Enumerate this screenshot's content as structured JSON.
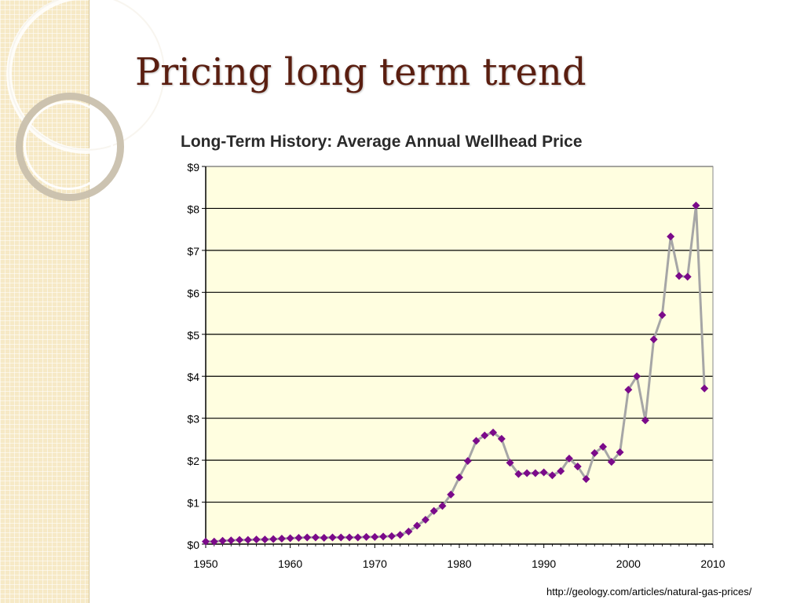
{
  "slide": {
    "title": "Pricing long term trend",
    "source": "http://geology.com/articles/natural-gas-prices/"
  },
  "colors": {
    "title": "#5a1e10",
    "plot_background": "#fffee0",
    "line": "#a6a6a6",
    "marker": "#7b0a8a",
    "side_panel": "#f6e9c6"
  },
  "chart_data": {
    "type": "line",
    "title": "Long-Term History:  Average Annual Wellhead Price",
    "xlabel": "",
    "ylabel": "",
    "xlim": [
      1950,
      2010
    ],
    "ylim": [
      0,
      9
    ],
    "grid": true,
    "x_ticks": [
      1950,
      1960,
      1970,
      1980,
      1990,
      2000,
      2010
    ],
    "x_tick_labels": [
      "1950",
      "1960",
      "1970",
      "1980",
      "1990",
      "2000",
      "2010"
    ],
    "y_ticks": [
      0,
      1,
      2,
      3,
      4,
      5,
      6,
      7,
      8,
      9
    ],
    "y_tick_labels": [
      "$0",
      "$1",
      "$2",
      "$3",
      "$4",
      "$5",
      "$6",
      "$7",
      "$8",
      "$9"
    ],
    "series": [
      {
        "x": [
          1950,
          1951,
          1952,
          1953,
          1954,
          1955,
          1956,
          1957,
          1958,
          1959,
          1960,
          1961,
          1962,
          1963,
          1964,
          1965,
          1966,
          1967,
          1968,
          1969,
          1970,
          1971,
          1972,
          1973,
          1974,
          1975,
          1976,
          1977,
          1978,
          1979,
          1980,
          1981,
          1982,
          1983,
          1984,
          1985,
          1986,
          1987,
          1988,
          1989,
          1990,
          1991,
          1992,
          1993,
          1994,
          1995,
          1996,
          1997,
          1998,
          1999,
          2000,
          2001,
          2002,
          2003,
          2004,
          2005,
          2006,
          2007,
          2008,
          2009
        ],
        "values": [
          0.06,
          0.06,
          0.08,
          0.09,
          0.1,
          0.1,
          0.11,
          0.11,
          0.12,
          0.13,
          0.14,
          0.15,
          0.16,
          0.16,
          0.15,
          0.16,
          0.16,
          0.16,
          0.16,
          0.17,
          0.17,
          0.18,
          0.19,
          0.22,
          0.3,
          0.44,
          0.58,
          0.79,
          0.91,
          1.18,
          1.59,
          1.98,
          2.46,
          2.59,
          2.66,
          2.51,
          1.94,
          1.67,
          1.69,
          1.69,
          1.71,
          1.64,
          1.74,
          2.04,
          1.85,
          1.55,
          2.17,
          2.32,
          1.96,
          2.19,
          3.68,
          4.0,
          2.95,
          4.88,
          5.46,
          7.33,
          6.39,
          6.37,
          8.07,
          3.71
        ]
      }
    ]
  }
}
